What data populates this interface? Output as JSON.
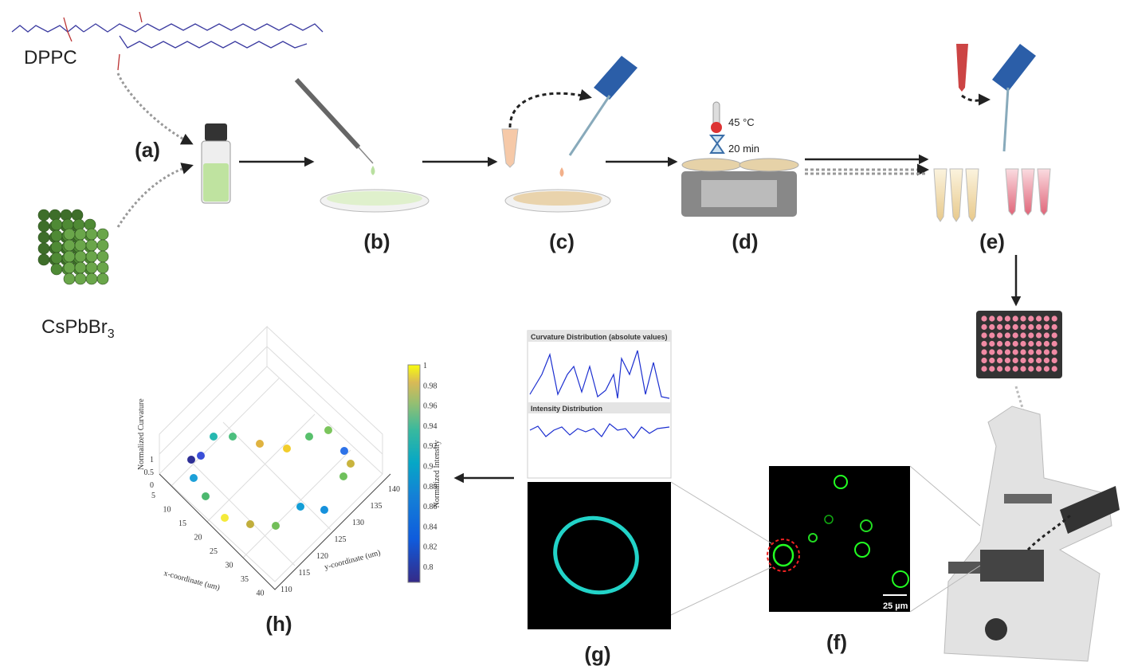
{
  "molecules": {
    "dppc": "DPPC",
    "csPbBr3": {
      "base": "CsPbBr",
      "subscript": "3"
    }
  },
  "steps": {
    "a": "(a)",
    "b": "(b)",
    "c": "(c)",
    "d": "(d)",
    "e": "(e)",
    "f": "(f)",
    "g": "(g)",
    "h": "(h)"
  },
  "conditions": {
    "temperature": "45 °C",
    "time": "20 min"
  },
  "panel_f": {
    "scale_bar": "25 µm"
  },
  "panel_g": {
    "curvature_title": "Curvature Distribution (absolute values)",
    "intensity_title": "Intensity Distribution"
  },
  "panel_h": {
    "z_label": "Normalized Curvature",
    "x_label": "x-coordinate (um)",
    "y_label": "y-coordinate (um)",
    "color_label": "Normalized Intensity",
    "z_ticks": [
      0,
      0.5,
      1
    ],
    "x_ticks": [
      5,
      10,
      15,
      20,
      25,
      30,
      35,
      40
    ],
    "y_ticks": [
      110,
      115,
      120,
      125,
      130,
      135,
      140
    ],
    "color_ticks": [
      0.8,
      0.82,
      0.84,
      0.86,
      0.88,
      0.9,
      0.92,
      0.94,
      0.96,
      0.98,
      1
    ]
  }
}
